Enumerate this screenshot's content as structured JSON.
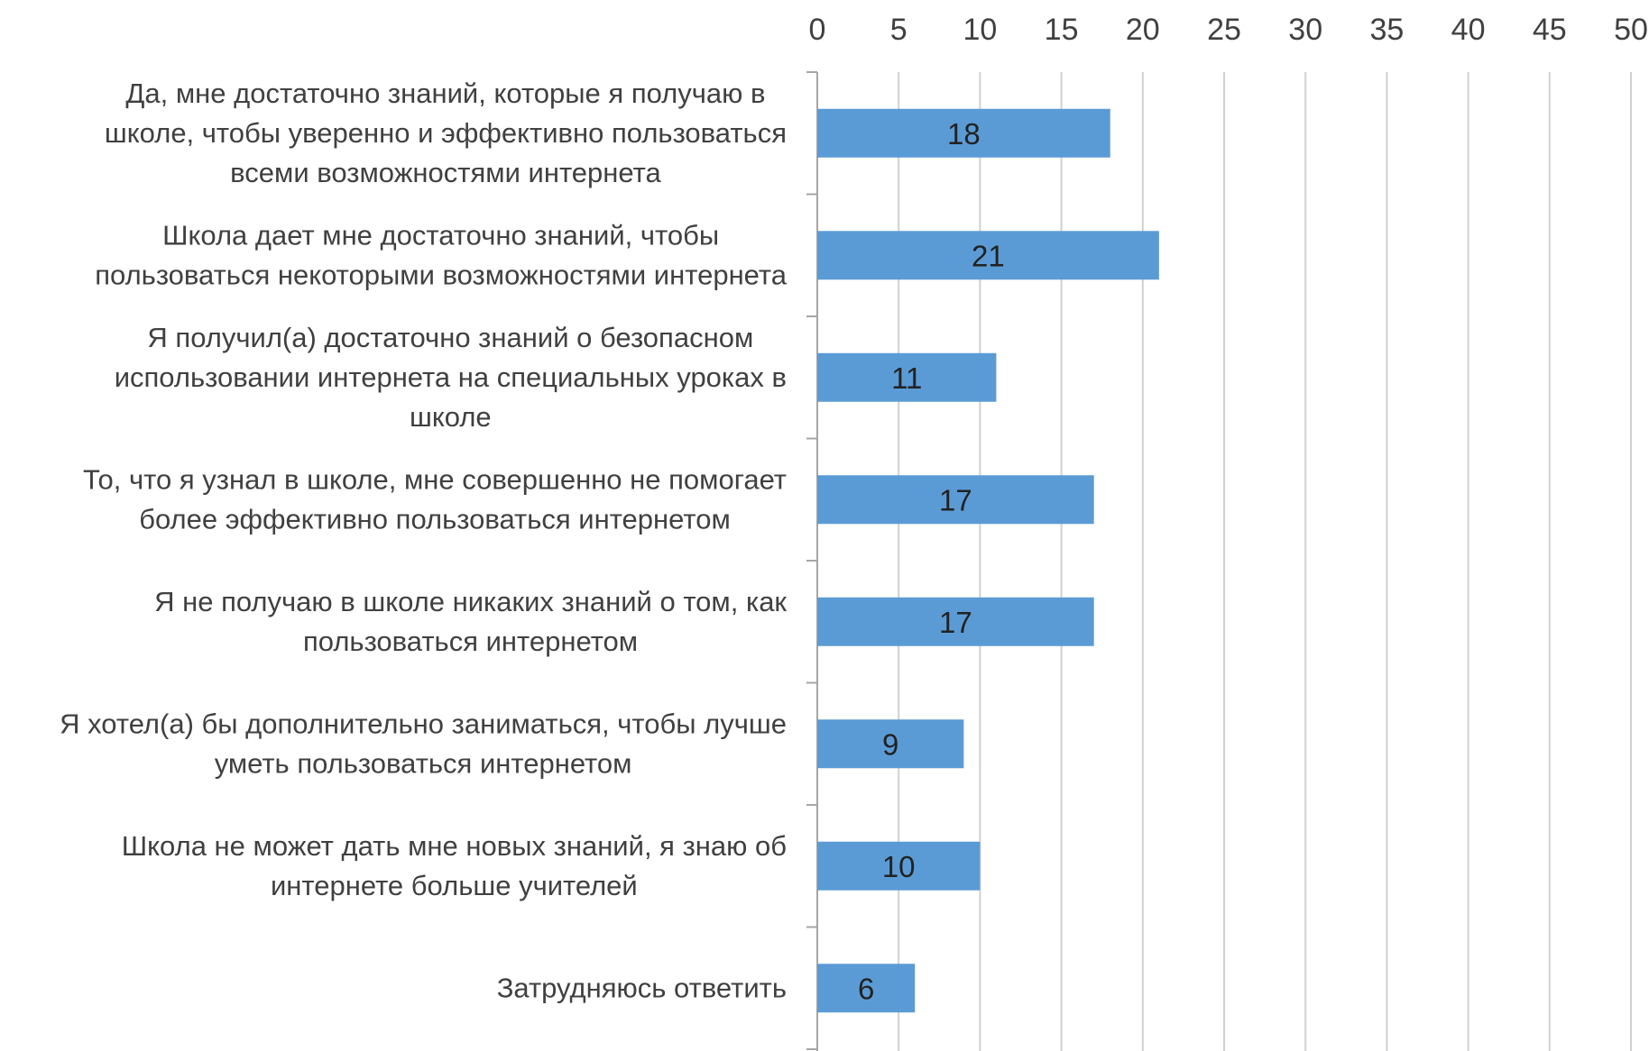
{
  "chart_data": {
    "type": "bar",
    "orientation": "horizontal",
    "title": "",
    "xlabel": "",
    "ylabel": "",
    "xlim": [
      0,
      50
    ],
    "x_ticks": [
      0,
      5,
      10,
      15,
      20,
      25,
      30,
      35,
      40,
      45,
      50
    ],
    "x_axis_position": "top",
    "grid": true,
    "legend": "none",
    "bar_color": "#5b9bd5",
    "categories": [
      [
        "Да, мне достаточно знаний, которые я получаю в",
        "школе, чтобы уверенно и эффективно пользоваться",
        "всеми возможностями  интернета"
      ],
      [
        "Школа дает мне достаточно знаний, чтобы",
        "пользоваться некоторыми возможностями интернета"
      ],
      [
        "Я получил(а) достаточно знаний о безопасном",
        "использовании интернета  на специальных уроках в",
        "школе"
      ],
      [
        "То, что я узнал в школе, мне совершенно не помогает",
        "более эффективно  пользоваться интернетом"
      ],
      [
        "Я не получаю в школе никаких знаний о том, как",
        "пользоваться интернетом"
      ],
      [
        "Я хотел(а) бы дополнительно заниматься, чтобы лучше",
        "уметь пользоваться интернетом"
      ],
      [
        "Школа не может дать мне новых знаний, я знаю об",
        "интернете  больше учителей"
      ],
      [
        "Затрудняюсь ответить"
      ]
    ],
    "values": [
      18,
      21,
      11,
      17,
      17,
      9,
      10,
      6
    ],
    "data_labels": [
      "18",
      "21",
      "11",
      "17",
      "17",
      "9",
      "10",
      "6"
    ]
  }
}
